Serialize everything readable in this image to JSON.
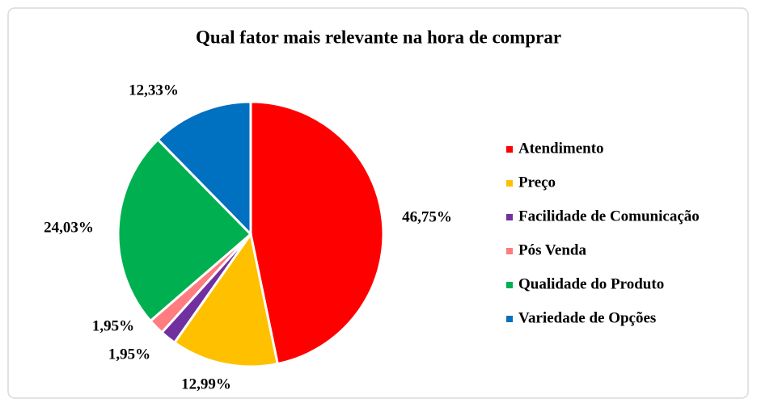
{
  "chart_data": {
    "type": "pie",
    "title": "Qual fator mais relevante na hora de comprar",
    "categories": [
      "Atendimento",
      "Preço",
      "Facilidade de Comunicação",
      "Pós Venda",
      "Qualidade do Produto",
      "Variedade de Opções"
    ],
    "values": [
      46.75,
      12.99,
      1.95,
      1.95,
      24.03,
      12.33
    ],
    "value_labels": [
      "46,75%",
      "12,99%",
      "1,95%",
      "1,95%",
      "24,03%",
      "12,33%"
    ],
    "colors": [
      "#ff0000",
      "#ffc000",
      "#7030a0",
      "#ff7c80",
      "#00b050",
      "#0070c0"
    ],
    "legend": "right"
  }
}
